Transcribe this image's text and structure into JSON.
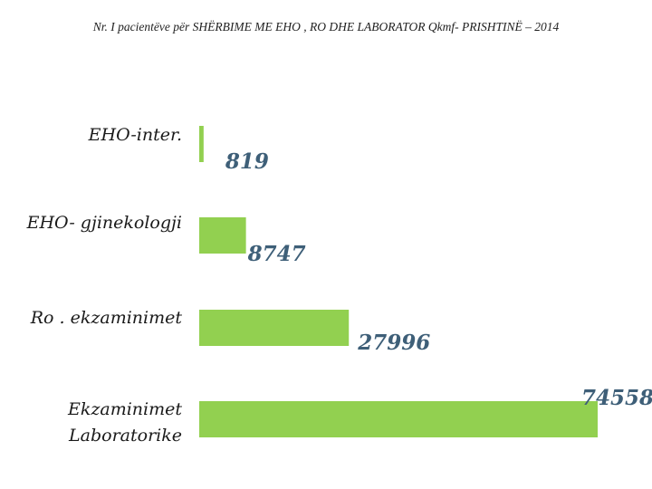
{
  "header": {
    "title": "Nr. I pacientëve për SHËRBIME ME EHO , RO DHE LABORATOR Qkmf- PRISHTINË – 2014"
  },
  "chart_data": {
    "type": "bar",
    "orientation": "horizontal",
    "title": "Nr. I pacientëve për SHËRBIME ME EHO , RO DHE LABORATOR Qkmf- PRISHTINË – 2014",
    "xlabel": "",
    "ylabel": "",
    "grid": false,
    "legend": "none",
    "xlim": [
      0,
      74558
    ],
    "categories": [
      [
        "EHO-inter."
      ],
      [
        "EHO- gjinekologji"
      ],
      [
        "Ro . ekzaminimet"
      ],
      [
        "Ekzaminimet",
        "Laboratorike"
      ]
    ],
    "values": [
      819,
      8747,
      27996,
      74558
    ],
    "value_labels": [
      "819",
      "8747",
      "27996",
      "74558"
    ],
    "bar_color": "#92d050",
    "label_color": "#3e5f78"
  }
}
